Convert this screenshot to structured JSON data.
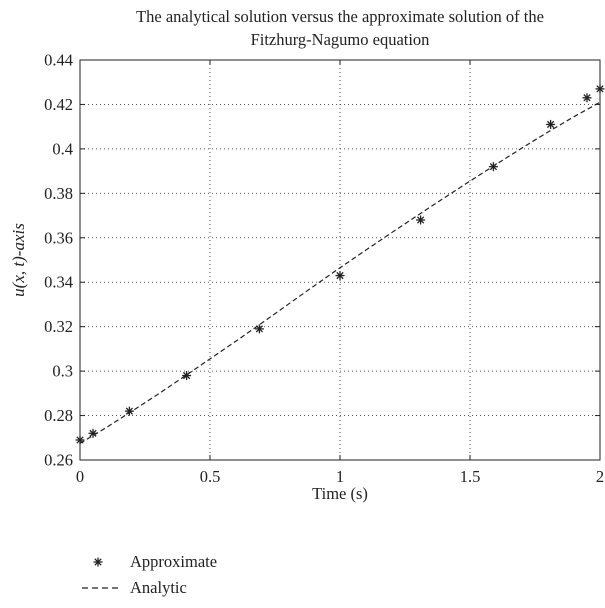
{
  "chart_data": {
    "type": "line",
    "title_lines": [
      "The analytical solution versus the approximate solution of the",
      "Fitzhurg-Nagumo equation"
    ],
    "xlabel": "Time (s)",
    "ylabel": "u(x, t)-axis",
    "xlim": [
      0,
      2
    ],
    "ylim": [
      0.26,
      0.44
    ],
    "x_ticks": [
      0,
      0.5,
      1,
      1.5,
      2
    ],
    "x_tick_labels": [
      "0",
      "0.5",
      "1",
      "1.5",
      "2"
    ],
    "y_ticks": [
      0.26,
      0.28,
      0.3,
      0.32,
      0.34,
      0.36,
      0.38,
      0.4,
      0.42,
      0.44
    ],
    "y_tick_labels": [
      "0.26",
      "0.28",
      "0.3",
      "0.32",
      "0.34",
      "0.36",
      "0.38",
      "0.4",
      "0.42",
      "0.44"
    ],
    "grid": true,
    "legend_position": "below-left",
    "series": [
      {
        "name": "Approximate",
        "style": "markers",
        "marker": "asterisk",
        "color": "#222222",
        "x": [
          0,
          0.05,
          0.19,
          0.41,
          0.69,
          1.0,
          1.31,
          1.59,
          1.81,
          1.95,
          2.0
        ],
        "y": [
          0.269,
          0.272,
          0.282,
          0.298,
          0.319,
          0.343,
          0.368,
          0.392,
          0.411,
          0.423,
          0.427
        ]
      },
      {
        "name": "Analytic",
        "style": "dashed-line",
        "color": "#222222",
        "x": [
          0,
          0.1,
          0.2,
          0.3,
          0.4,
          0.5,
          0.6,
          0.7,
          0.8,
          0.9,
          1.0,
          1.1,
          1.2,
          1.3,
          1.4,
          1.5,
          1.6,
          1.7,
          1.8,
          1.9,
          2.0
        ],
        "y": [
          0.2675,
          0.2745,
          0.282,
          0.2896,
          0.2975,
          0.3055,
          0.3135,
          0.3217,
          0.33,
          0.3383,
          0.3465,
          0.3545,
          0.3624,
          0.3702,
          0.3779,
          0.3855,
          0.393,
          0.4004,
          0.4076,
          0.4145,
          0.421
        ]
      }
    ]
  }
}
